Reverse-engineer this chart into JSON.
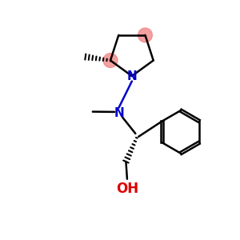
{
  "background_color": "#ffffff",
  "bond_color": "#000000",
  "N_color": "#0000cc",
  "O_color": "#dd0000",
  "highlight_color": "#f08080",
  "highlight_alpha": 0.75,
  "figsize": [
    3.0,
    3.0
  ],
  "dpi": 100,
  "xlim": [
    0,
    10
  ],
  "ylim": [
    0,
    10
  ]
}
